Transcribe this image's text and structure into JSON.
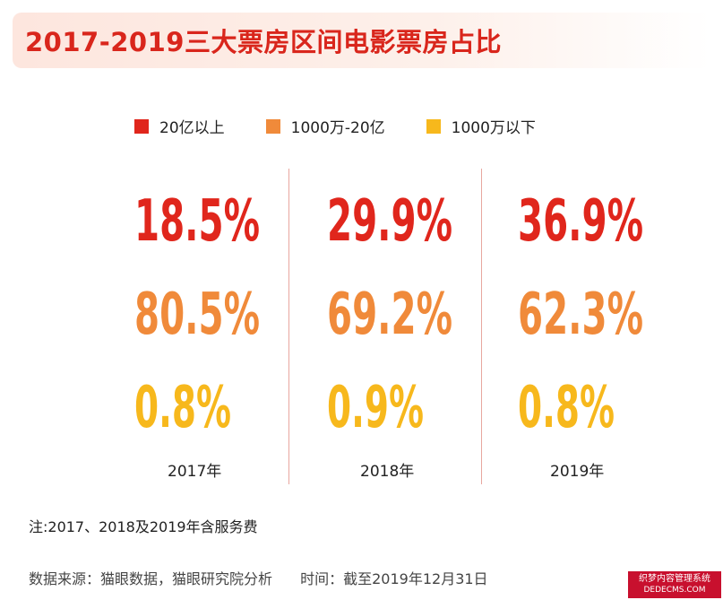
{
  "title": "2017-2019三大票房区间电影票房占比",
  "colors": {
    "title": "#d9261c",
    "tier1": "#e0261c",
    "tier2": "#f08a3a",
    "tier3": "#f7b81c"
  },
  "chart_data": {
    "type": "table",
    "title": "2017-2019三大票房区间电影票房占比",
    "categories": [
      "2017年",
      "2018年",
      "2019年"
    ],
    "series": [
      {
        "name": "20亿以上",
        "color": "#e0261c",
        "values": [
          18.5,
          29.9,
          36.9
        ],
        "labels": [
          "18.5%",
          "29.9%",
          "36.9%"
        ]
      },
      {
        "name": "1000万-20亿",
        "color": "#f08a3a",
        "values": [
          80.5,
          69.2,
          62.3
        ],
        "labels": [
          "80.5%",
          "69.2%",
          "62.3%"
        ]
      },
      {
        "name": "1000万以下",
        "color": "#f7b81c",
        "values": [
          0.8,
          0.9,
          0.8
        ],
        "labels": [
          "0.8%",
          "0.9%",
          "0.8%"
        ]
      }
    ],
    "legend": "top"
  },
  "note": "注:2017、2018及2019年含服务费",
  "source": "数据来源：猫眼数据，猫眼研究院分析",
  "time": "时间：截至2019年12月31日",
  "watermark": {
    "line1": "织梦内容管理系统",
    "line2": "DEDECMS.COM"
  }
}
